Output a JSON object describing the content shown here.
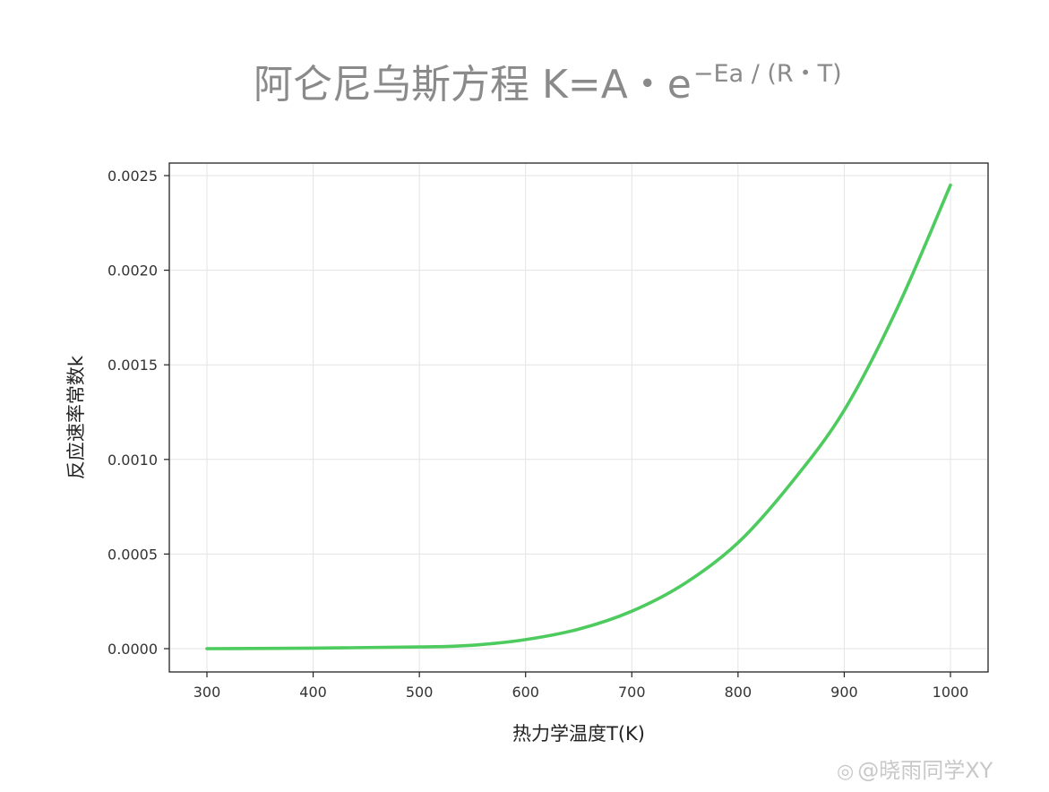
{
  "chart_data": {
    "type": "line",
    "title": "阿仑尼乌斯方程 K=A・e",
    "title_superscript": "−Ea / (R・T)",
    "xlabel": "热力学温度T(K)",
    "ylabel": "反应速率常数k",
    "xlim": [
      300,
      1000
    ],
    "ylim": [
      0,
      0.0025
    ],
    "x_ticks": [
      "300",
      "400",
      "500",
      "600",
      "700",
      "800",
      "900",
      "1000"
    ],
    "y_ticks": [
      "0.0000",
      "0.0005",
      "0.0010",
      "0.0015",
      "0.0020",
      "0.0025"
    ],
    "grid": true,
    "legend": "none",
    "series": [
      {
        "color": "#4dcb5e",
        "x": [
          300,
          400,
          500,
          550,
          600,
          650,
          700,
          750,
          800,
          850,
          900,
          950,
          1000
        ],
        "y": [
          0.0,
          3e-06,
          9e-06,
          1.8e-05,
          4.8e-05,
          0.000103,
          0.000198,
          0.000345,
          0.00056,
          0.000875,
          0.00126,
          0.0018,
          0.00245
        ]
      }
    ]
  },
  "watermark": {
    "logo": "weibo-logo-icon",
    "text": "@晓雨同学XY"
  }
}
